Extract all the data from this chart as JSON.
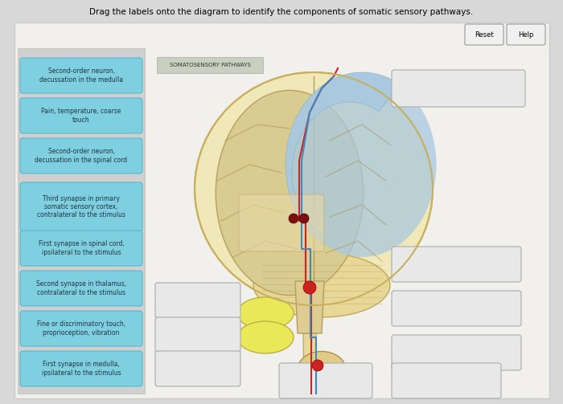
{
  "title_text": "Drag the labels onto the diagram to identify the components of somatic sensory pathways.",
  "subtitle": "SOMATOSENSORY PATHWAYS",
  "bg_outer": "#d8d8d8",
  "bg_inner": "#f0f0ee",
  "left_labels": [
    "Second-order neuron,\ndecussation in the medulla",
    "Pain, temperature, coarse\ntouch",
    "Second-order neuron,\ndecussation in the spinal cord",
    "Third synapse in primary\nsomatic sensory cortex,\ncontralateral to the stimulus",
    "First synapse in spinal cord,\nipsilateral to the stimulus",
    "Second synapse in thalamus,\ncontralateral to the stimulus",
    "Fine or discriminatory touch,\nproprioception, vibration",
    "First synapse in medulla,\nipsilateral to the stimulus"
  ],
  "label_box_color": "#7ecfdf",
  "label_box_edge": "#5ab8cc",
  "label_text_color": "#223344",
  "brain_color": "#f0e8b8",
  "brain_left_color": "#c8b878",
  "cerebellum_color": "#e8d898",
  "brainstem_color": "#e0cc90",
  "blue_region_color": "#a8c8e0",
  "thalamus_color": "#e8d0a0",
  "empty_box_color": "#e8e8e8",
  "empty_box_edge": "#aaaaaa",
  "red_path_color": "#cc2222",
  "blue_path_color": "#4488bb",
  "yellow_oval_color": "#e8e858",
  "ganglion_color": "#e0cc88"
}
